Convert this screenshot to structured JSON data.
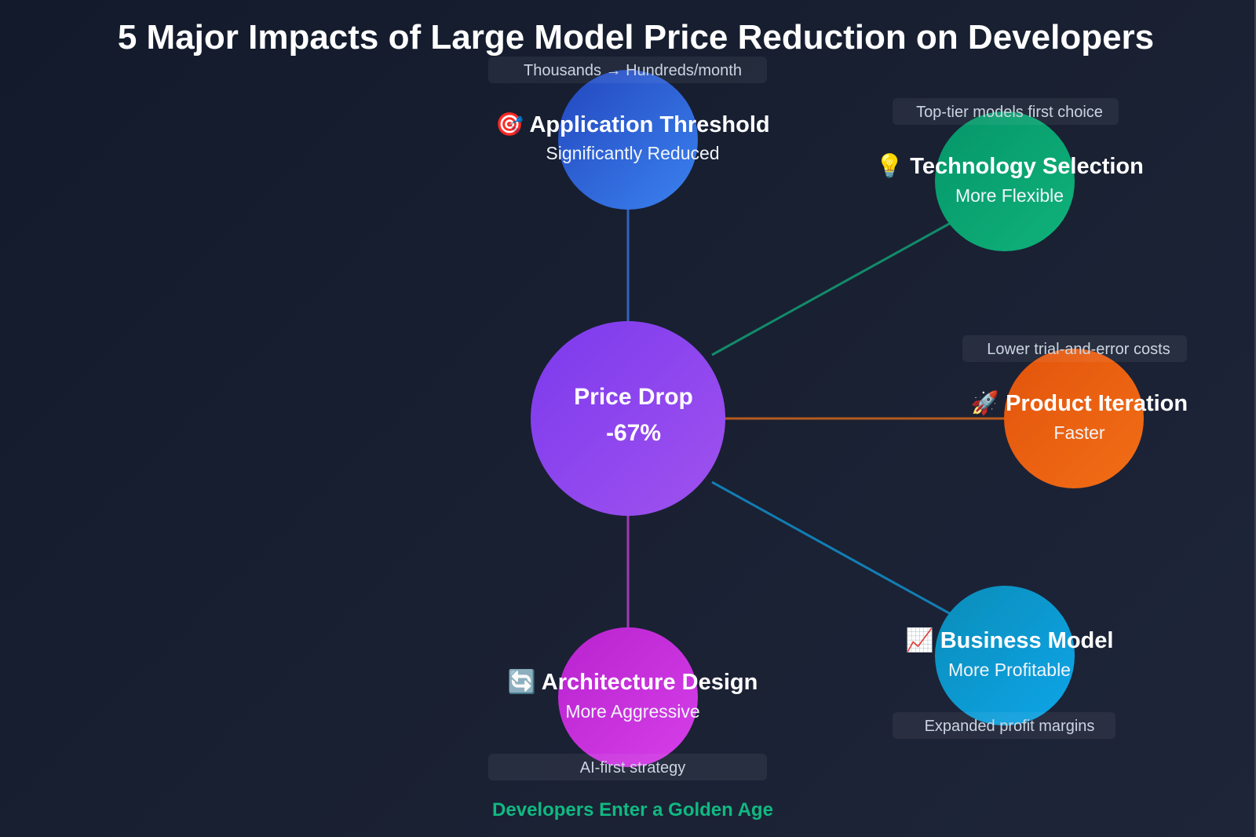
{
  "title": "5 Major Impacts of Large Model Price Reduction on Developers",
  "center": {
    "label": "Price Drop",
    "value": "-67%",
    "color": "#8b45e8"
  },
  "nodes": [
    {
      "icon": "🎯",
      "icon_name": "target-icon",
      "label": "Application Threshold",
      "sub": "Significantly Reduced",
      "tag": "Thousands → Hundreds/month",
      "color": "#2f63dc"
    },
    {
      "icon": "💡",
      "icon_name": "lightbulb-icon",
      "label": "Technology Selection",
      "sub": "More Flexible",
      "tag": "Top-tier models first choice",
      "color": "#0ea371"
    },
    {
      "icon": "🚀",
      "icon_name": "rocket-icon",
      "label": "Product Iteration",
      "sub": "Faster",
      "tag": "Lower trial-and-error costs",
      "color": "#ea5f12"
    },
    {
      "icon": "📈",
      "icon_name": "chart-up-icon",
      "label": "Business Model",
      "sub": "More Profitable",
      "tag": "Expanded profit margins",
      "color": "#0c9ccf"
    },
    {
      "icon": "🔄",
      "icon_name": "refresh-icon",
      "label": "Architecture Design",
      "sub": "More Aggressive",
      "tag": "AI-first strategy",
      "color": "#c52fd8"
    }
  ],
  "footer": "Developers Enter a Golden Age"
}
